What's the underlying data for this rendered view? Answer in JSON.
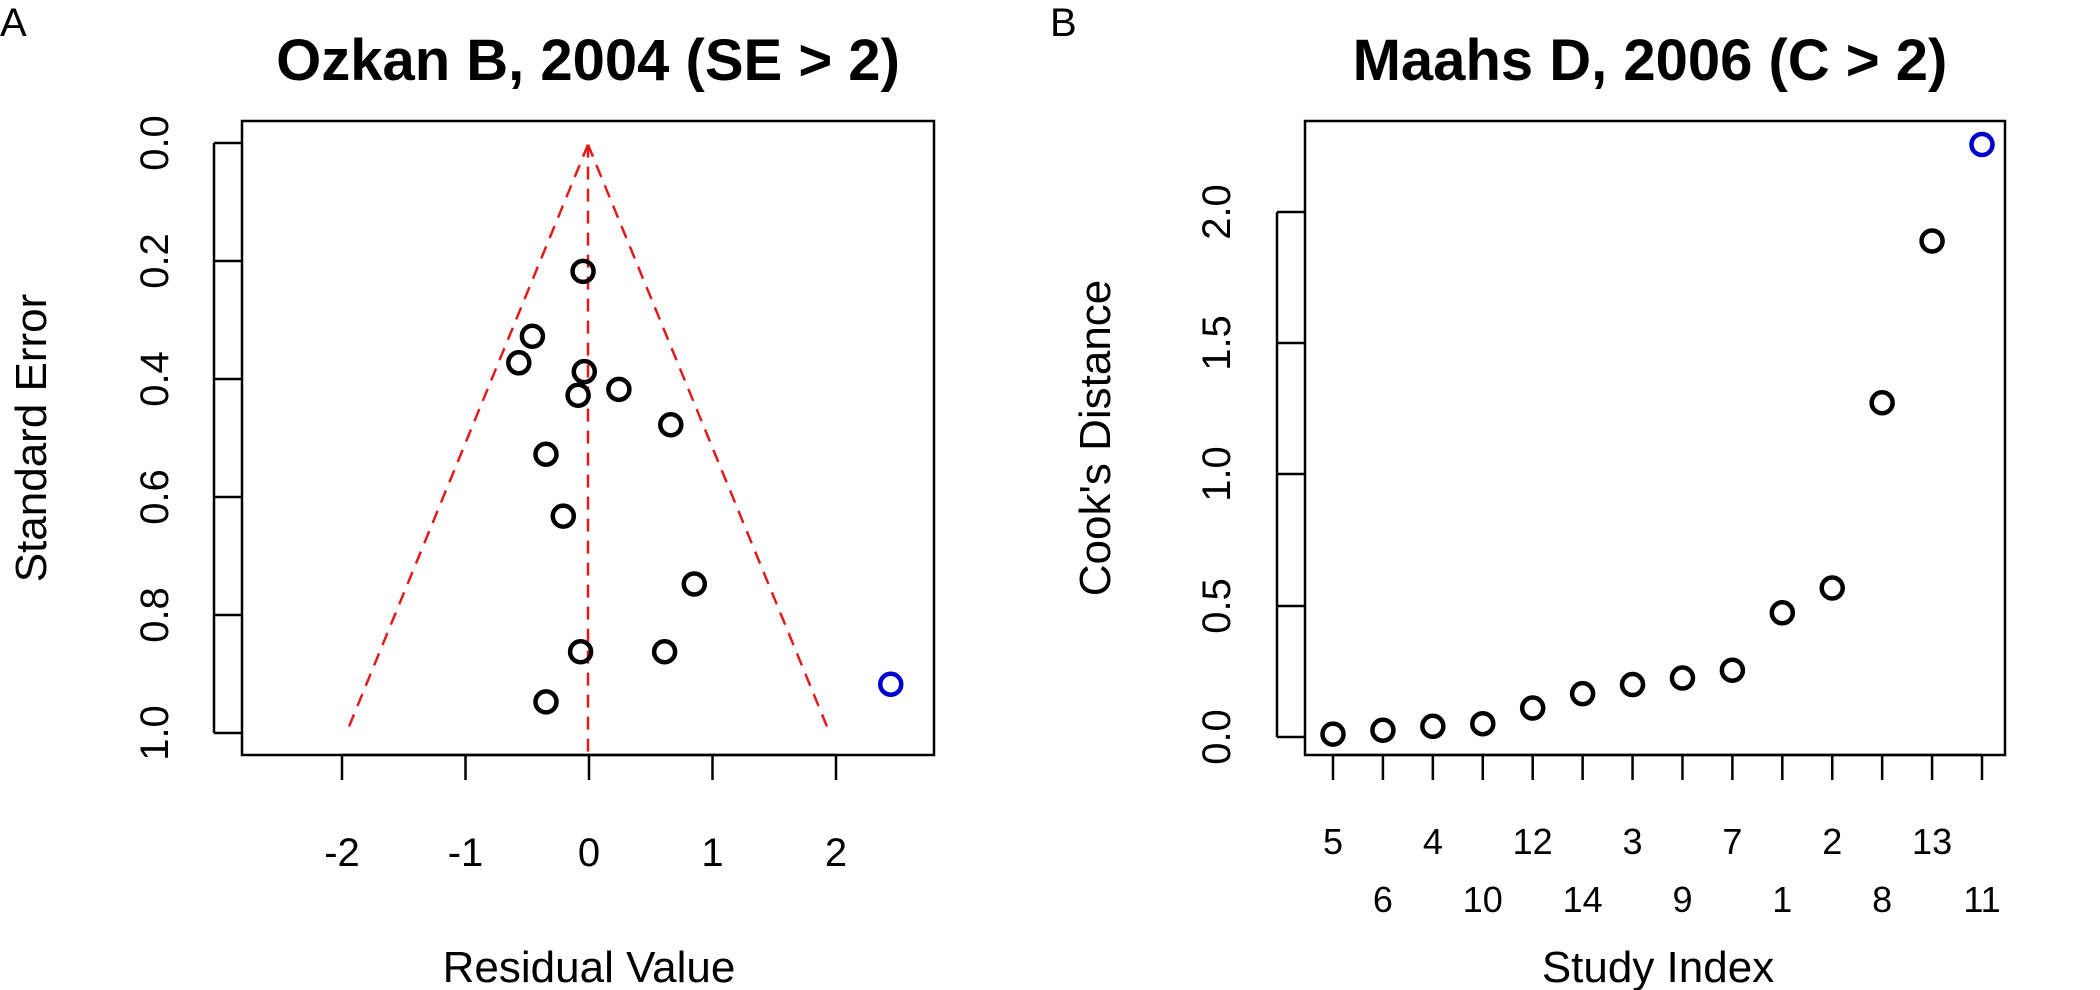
{
  "panels": [
    {
      "letter": "A",
      "title": "Ozkan B, 2004 (SE > 2)",
      "xlabel": "Residual Value",
      "ylabel": "Standard Error",
      "xticks": [
        "-2",
        "-1",
        "0",
        "1",
        "2"
      ],
      "yticks": [
        "0.0",
        "0.2",
        "0.4",
        "0.6",
        "0.8",
        "1.0"
      ]
    },
    {
      "letter": "B",
      "title": "Maahs D, 2006 (C > 2)",
      "xlabel": "Study Index",
      "ylabel": "Cook's Distance",
      "xticks": [
        "5",
        "6",
        "4",
        "10",
        "12",
        "14",
        "3",
        "9",
        "7",
        "1",
        "2",
        "8",
        "13",
        "11"
      ],
      "yticks": [
        "0.0",
        "0.5",
        "1.0",
        "1.5",
        "2.0"
      ]
    }
  ],
  "chart_data": [
    {
      "type": "scatter",
      "title": "Ozkan B, 2004 (SE > 2)",
      "xlabel": "Residual Value",
      "ylabel": "Standard Error",
      "xlim": [
        -2.8,
        2.8
      ],
      "ylim": [
        1.035,
        -0.04
      ],
      "y_reversed": true,
      "funnel": {
        "apex": [
          0,
          0
        ],
        "bottom_left": [
          -1.96,
          1.0
        ],
        "bottom_right": [
          1.96,
          1.0
        ],
        "style": "dashed",
        "color": "#e31a1c"
      },
      "reference_line": {
        "x": 0,
        "style": "dashed",
        "color": "#e31a1c"
      },
      "points": [
        {
          "x": -0.04,
          "y": 0.215
        },
        {
          "x": -0.45,
          "y": 0.325
        },
        {
          "x": -0.56,
          "y": 0.37
        },
        {
          "x": -0.03,
          "y": 0.385
        },
        {
          "x": 0.25,
          "y": 0.415
        },
        {
          "x": -0.08,
          "y": 0.425
        },
        {
          "x": 0.67,
          "y": 0.475
        },
        {
          "x": -0.34,
          "y": 0.525
        },
        {
          "x": -0.2,
          "y": 0.63
        },
        {
          "x": 0.86,
          "y": 0.745
        },
        {
          "x": -0.06,
          "y": 0.86
        },
        {
          "x": 0.62,
          "y": 0.86
        },
        {
          "x": -0.34,
          "y": 0.945
        },
        {
          "x": 2.45,
          "y": 0.915,
          "outlier": true
        }
      ],
      "colors": {
        "normal": "#000000",
        "outlier": "#0000cc"
      }
    },
    {
      "type": "scatter",
      "title": "Maahs D, 2006 (C > 2)",
      "xlabel": "Study Index",
      "ylabel": "Cook's Distance",
      "categories": [
        "5",
        "6",
        "4",
        "10",
        "12",
        "14",
        "3",
        "9",
        "7",
        "1",
        "2",
        "8",
        "13",
        "11"
      ],
      "values": [
        0.0,
        0.015,
        0.03,
        0.04,
        0.1,
        0.155,
        0.19,
        0.215,
        0.245,
        0.465,
        0.56,
        1.27,
        1.89,
        2.26
      ],
      "outlier_index": 13,
      "ylim": [
        -0.08,
        2.35
      ],
      "colors": {
        "normal": "#000000",
        "outlier": "#0000cc"
      }
    }
  ]
}
